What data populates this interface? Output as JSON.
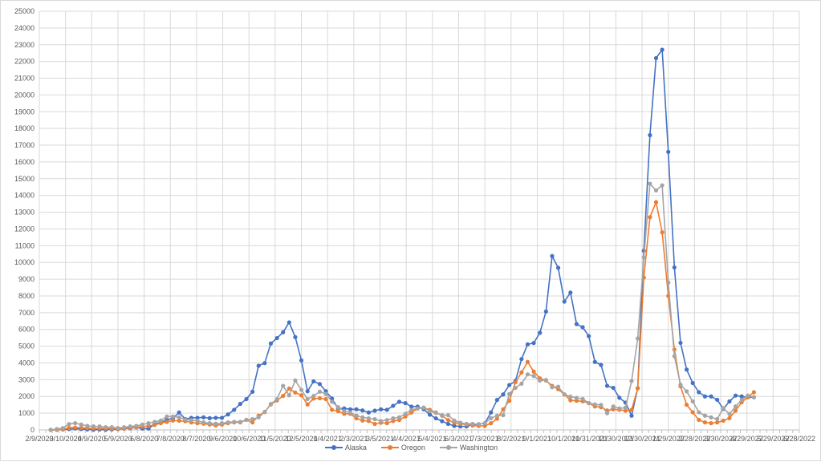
{
  "chart_data": {
    "type": "line",
    "title": "",
    "xlabel": "",
    "ylabel": "",
    "ylim": [
      0,
      25000
    ],
    "y_ticks": [
      "0",
      "1000",
      "2000",
      "3000",
      "4000",
      "5000",
      "6000",
      "7000",
      "8000",
      "9000",
      "10000",
      "11000",
      "12000",
      "13000",
      "14000",
      "15000",
      "16000",
      "17000",
      "18000",
      "19000",
      "20000",
      "21000",
      "22000",
      "23000",
      "24000",
      "25000"
    ],
    "x_range": [
      "2/9/2020",
      "6/28/2022"
    ],
    "x_ticks": [
      "2/9/2020",
      "3/10/2020",
      "4/9/2020",
      "5/9/2020",
      "6/8/2020",
      "7/8/2020",
      "8/7/2020",
      "9/6/2020",
      "10/6/2020",
      "11/5/2020",
      "12/5/2020",
      "1/4/2021",
      "2/3/2021",
      "3/5/2021",
      "4/4/2021",
      "5/4/2021",
      "6/3/2021",
      "7/3/2021",
      "8/2/2021",
      "9/1/2021",
      "10/1/2021",
      "10/31/2021",
      "11/30/2021",
      "12/30/2021",
      "1/29/2022",
      "2/28/2022",
      "3/30/2022",
      "4/29/2022",
      "5/29/2022",
      "6/28/2022"
    ],
    "grid": true,
    "legend_position": "bottom",
    "x": [
      "2/22/2020",
      "2/29/2020",
      "3/7/2020",
      "3/14/2020",
      "3/21/2020",
      "3/28/2020",
      "4/4/2020",
      "4/11/2020",
      "4/18/2020",
      "4/25/2020",
      "5/2/2020",
      "5/9/2020",
      "5/16/2020",
      "5/23/2020",
      "5/30/2020",
      "6/6/2020",
      "6/13/2020",
      "6/20/2020",
      "6/27/2020",
      "7/4/2020",
      "7/11/2020",
      "7/18/2020",
      "7/25/2020",
      "8/1/2020",
      "8/8/2020",
      "8/15/2020",
      "8/22/2020",
      "8/29/2020",
      "9/5/2020",
      "9/12/2020",
      "9/19/2020",
      "9/26/2020",
      "10/3/2020",
      "10/10/2020",
      "10/17/2020",
      "10/24/2020",
      "10/31/2020",
      "11/7/2020",
      "11/14/2020",
      "11/21/2020",
      "11/28/2020",
      "12/5/2020",
      "12/12/2020",
      "12/19/2020",
      "12/26/2020",
      "1/2/2021",
      "1/9/2021",
      "1/16/2021",
      "1/23/2021",
      "1/30/2021",
      "2/6/2021",
      "2/13/2021",
      "2/20/2021",
      "2/27/2021",
      "3/6/2021",
      "3/13/2021",
      "3/20/2021",
      "3/27/2021",
      "4/3/2021",
      "4/10/2021",
      "4/17/2021",
      "4/24/2021",
      "5/1/2021",
      "5/8/2021",
      "5/15/2021",
      "5/22/2021",
      "5/29/2021",
      "6/5/2021",
      "6/12/2021",
      "6/19/2021",
      "6/26/2021",
      "7/3/2021",
      "7/10/2021",
      "7/17/2021",
      "7/24/2021",
      "7/31/2021",
      "8/7/2021",
      "8/14/2021",
      "8/21/2021",
      "8/28/2021",
      "9/4/2021",
      "9/11/2021",
      "9/18/2021",
      "9/25/2021",
      "10/2/2021",
      "10/9/2021",
      "10/16/2021",
      "10/23/2021",
      "10/30/2021",
      "11/6/2021",
      "11/13/2021",
      "11/20/2021",
      "11/27/2021",
      "12/4/2021",
      "12/11/2021",
      "12/18/2021",
      "12/25/2021",
      "1/1/2022",
      "1/8/2022",
      "1/15/2022",
      "1/22/2022",
      "1/29/2022",
      "2/5/2022",
      "2/12/2022",
      "2/19/2022",
      "2/26/2022",
      "3/5/2022",
      "3/12/2022",
      "3/19/2022",
      "3/26/2022",
      "4/2/2022",
      "4/9/2022",
      "4/16/2022",
      "4/23/2022",
      "4/30/2022",
      "5/7/2022"
    ],
    "series": [
      {
        "name": "Alaska",
        "color": "#4472C4",
        "values": [
          0,
          10,
          20,
          50,
          80,
          50,
          30,
          10,
          20,
          10,
          30,
          50,
          80,
          100,
          150,
          80,
          80,
          350,
          450,
          600,
          700,
          1040,
          650,
          720,
          720,
          750,
          700,
          720,
          720,
          925,
          1200,
          1550,
          1840,
          2280,
          3830,
          3990,
          5160,
          5480,
          5830,
          6420,
          5540,
          4150,
          2310,
          2900,
          2740,
          2310,
          1870,
          1280,
          1280,
          1230,
          1230,
          1160,
          1040,
          1150,
          1230,
          1200,
          1440,
          1680,
          1600,
          1390,
          1390,
          1230,
          910,
          690,
          520,
          360,
          240,
          210,
          210,
          320,
          340,
          400,
          1040,
          1790,
          2120,
          2680,
          2920,
          4230,
          5110,
          5190,
          5800,
          7070,
          10380,
          9680,
          7660,
          8200,
          6320,
          6130,
          5600,
          4060,
          3880,
          2630,
          2510,
          1920,
          1630,
          850,
          2490,
          10700,
          17600,
          22200,
          22700,
          16600,
          9700,
          5200,
          3600,
          2800,
          2250,
          2000,
          2000,
          1800,
          1250,
          1700,
          2050,
          2000,
          1950,
          1950
        ]
      },
      {
        "name": "Oregon",
        "color": "#ED7D31",
        "values": [
          0,
          0,
          30,
          120,
          140,
          130,
          110,
          90,
          90,
          80,
          70,
          80,
          90,
          130,
          160,
          190,
          240,
          300,
          400,
          480,
          560,
          550,
          520,
          450,
          400,
          370,
          320,
          270,
          320,
          400,
          450,
          450,
          600,
          450,
          850,
          1070,
          1520,
          1760,
          2030,
          2470,
          2230,
          2070,
          1520,
          1870,
          1890,
          1840,
          1200,
          1120,
          960,
          960,
          690,
          560,
          530,
          360,
          430,
          400,
          530,
          590,
          800,
          1040,
          1280,
          1330,
          1200,
          1040,
          850,
          590,
          430,
          360,
          320,
          260,
          240,
          240,
          400,
          670,
          1230,
          1740,
          2840,
          3430,
          4060,
          3480,
          3080,
          2950,
          2630,
          2430,
          2120,
          1770,
          1740,
          1710,
          1600,
          1400,
          1360,
          1160,
          1230,
          1200,
          1150,
          1200,
          2480,
          9100,
          12700,
          13600,
          11800,
          8000,
          4800,
          2600,
          1500,
          1050,
          600,
          450,
          400,
          450,
          550,
          700,
          1150,
          1650,
          1950,
          2250
        ]
      },
      {
        "name": "Washington",
        "color": "#A5A5A5",
        "values": [
          0,
          50,
          110,
          350,
          400,
          320,
          240,
          210,
          210,
          160,
          160,
          110,
          160,
          210,
          240,
          320,
          400,
          480,
          560,
          800,
          800,
          750,
          620,
          580,
          550,
          450,
          400,
          370,
          400,
          450,
          480,
          480,
          600,
          640,
          750,
          1070,
          1550,
          1840,
          2630,
          2070,
          2950,
          2390,
          1840,
          2030,
          2280,
          2150,
          1680,
          1360,
          1120,
          1040,
          850,
          750,
          690,
          640,
          530,
          590,
          690,
          750,
          960,
          1200,
          1280,
          1330,
          1120,
          1010,
          880,
          880,
          560,
          430,
          360,
          360,
          340,
          400,
          700,
          850,
          880,
          2150,
          2510,
          2760,
          3320,
          3220,
          2950,
          2980,
          2550,
          2580,
          2120,
          1990,
          1910,
          1850,
          1600,
          1520,
          1490,
          1000,
          1400,
          1280,
          1330,
          2920,
          5460,
          10300,
          14700,
          14300,
          14600,
          8800,
          4400,
          2700,
          2300,
          1700,
          1050,
          850,
          750,
          650,
          1300,
          950,
          1400,
          1800,
          2050,
          1950
        ]
      }
    ]
  }
}
